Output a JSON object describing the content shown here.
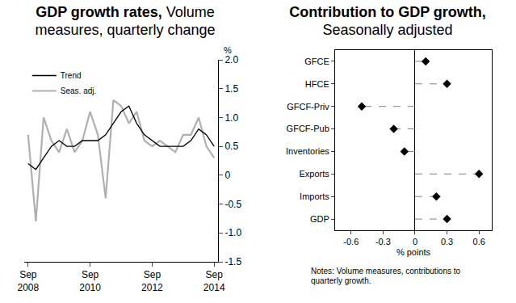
{
  "chart_data": [
    {
      "type": "line",
      "title": "GDP growth rates,",
      "subtitle": "Volume measures, quarterly change",
      "y_label": "%",
      "categories": [
        "Sep 2008",
        null,
        null,
        null,
        null,
        null,
        null,
        null,
        "Sep 2010",
        null,
        null,
        null,
        null,
        null,
        null,
        null,
        "Sep 2012",
        null,
        null,
        null,
        null,
        null,
        null,
        null,
        "Sep 2014"
      ],
      "series": [
        {
          "name": "Trend",
          "color": "#000000",
          "values": [
            0.2,
            0.1,
            0.3,
            0.5,
            0.6,
            0.5,
            0.5,
            0.6,
            0.6,
            0.6,
            0.7,
            0.9,
            1.1,
            1.2,
            0.9,
            0.7,
            0.6,
            0.5,
            0.5,
            0.5,
            0.5,
            0.6,
            0.8,
            0.7,
            0.5
          ]
        },
        {
          "name": "Seas. adj.",
          "color": "#b0b0b0",
          "values": [
            0.7,
            -0.8,
            1.0,
            0.6,
            0.4,
            0.8,
            0.4,
            0.6,
            1.1,
            0.7,
            -0.4,
            1.3,
            1.2,
            0.9,
            1.1,
            0.6,
            0.5,
            0.6,
            0.5,
            0.4,
            0.7,
            0.7,
            1.0,
            0.5,
            0.3
          ]
        }
      ],
      "ylim": [
        -1.5,
        2.0
      ],
      "yticks": [
        {
          "value": 2.0,
          "label": "2.0"
        },
        1.5,
        {
          "value": 1.0,
          "label": "1.0"
        },
        0.5,
        0,
        -0.5,
        {
          "value": -1.0,
          "label": "-1.0"
        },
        -1.5
      ],
      "legend": "upper left",
      "grid": false
    },
    {
      "type": "dot",
      "orientation": "horizontal",
      "title": "Contribution to GDP growth,",
      "subtitle": "Seasonally adjusted",
      "x_label": "% points",
      "note": "Notes: Volume measures, contributions to quarterly growth.",
      "categories": [
        "GFCE",
        "HFCE",
        "GFCF-Priv",
        "GFCF-Pub",
        "Inventories",
        "Exports",
        "Imports",
        "GDP"
      ],
      "values": [
        0.1,
        0.3,
        -0.5,
        -0.2,
        -0.1,
        0.6,
        0.2,
        0.3
      ],
      "color": "#000000",
      "marker": "diamond",
      "line_style": "dashed",
      "xlim": [
        -0.75,
        0.72
      ],
      "xticks": [
        -0.6,
        -0.3,
        0,
        0.3,
        0.6
      ],
      "grid": false
    }
  ]
}
